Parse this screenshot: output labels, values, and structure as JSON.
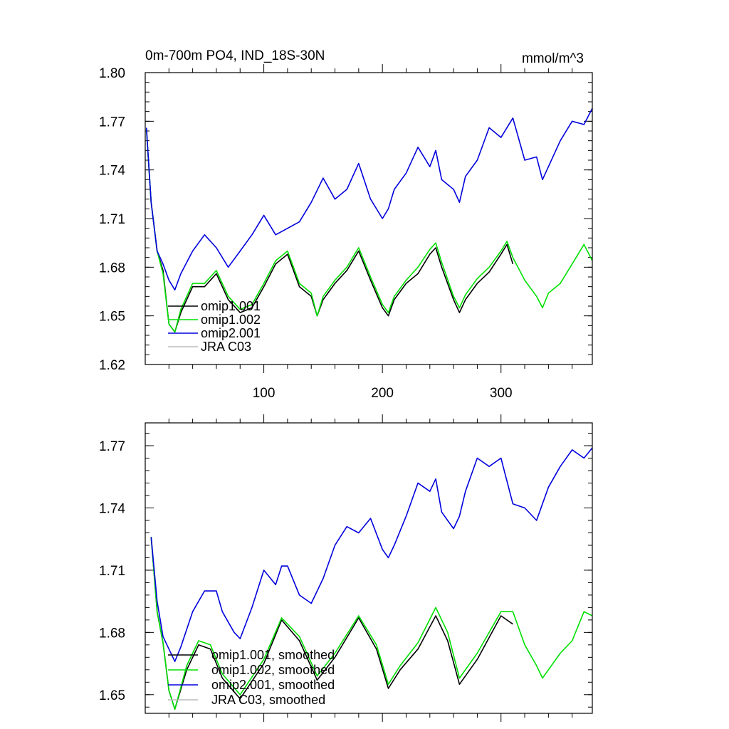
{
  "colors": {
    "omip1_001": "#000000",
    "omip1_002": "#00e000",
    "omip2_001": "#0000dd",
    "jra_c03": "#bbbbbb"
  },
  "chart_data": [
    {
      "type": "line",
      "title": "0m-700m PO4, IND_18S-30N",
      "units": "mmol/m^3",
      "xlabel": "",
      "ylabel": "",
      "xlim": [
        0,
        377
      ],
      "ylim": [
        1.62,
        1.8
      ],
      "xticks": [
        100,
        200,
        300
      ],
      "xtick_labels": [
        "100",
        "200",
        "300"
      ],
      "yticks": [
        1.62,
        1.65,
        1.68,
        1.71,
        1.74,
        1.77,
        1.8
      ],
      "ytick_labels": [
        "1.62",
        "1.65",
        "1.68",
        "1.71",
        "1.74",
        "1.77",
        "1.80"
      ],
      "legend_position": "bottom-left",
      "series": [
        {
          "name": "omip1.001",
          "color_key": "omip1_001",
          "x": [
            1,
            5,
            10,
            15,
            20,
            25,
            30,
            40,
            50,
            60,
            70,
            80,
            90,
            100,
            110,
            120,
            130,
            140,
            145,
            150,
            160,
            170,
            180,
            190,
            200,
            205,
            210,
            220,
            230,
            240,
            245,
            250,
            260,
            265,
            270,
            280,
            290,
            300,
            305,
            310
          ],
          "values": [
            1.765,
            1.72,
            1.69,
            1.678,
            1.645,
            1.64,
            1.652,
            1.668,
            1.668,
            1.676,
            1.66,
            1.652,
            1.655,
            1.668,
            1.682,
            1.688,
            1.668,
            1.662,
            1.65,
            1.66,
            1.67,
            1.678,
            1.69,
            1.672,
            1.655,
            1.65,
            1.66,
            1.67,
            1.676,
            1.688,
            1.692,
            1.68,
            1.66,
            1.652,
            1.66,
            1.67,
            1.677,
            1.688,
            1.694,
            1.682
          ]
        },
        {
          "name": "omip1.002",
          "color_key": "omip1_002",
          "x": [
            1,
            5,
            10,
            15,
            20,
            25,
            30,
            40,
            50,
            60,
            70,
            80,
            90,
            100,
            110,
            120,
            130,
            140,
            145,
            150,
            160,
            170,
            180,
            190,
            200,
            205,
            210,
            220,
            230,
            240,
            245,
            250,
            260,
            265,
            270,
            280,
            290,
            300,
            305,
            310,
            320,
            330,
            335,
            340,
            350,
            360,
            370,
            377
          ],
          "values": [
            1.765,
            1.72,
            1.69,
            1.676,
            1.645,
            1.64,
            1.654,
            1.67,
            1.67,
            1.678,
            1.662,
            1.654,
            1.657,
            1.67,
            1.684,
            1.69,
            1.67,
            1.664,
            1.65,
            1.662,
            1.672,
            1.68,
            1.692,
            1.674,
            1.657,
            1.652,
            1.662,
            1.672,
            1.68,
            1.691,
            1.695,
            1.683,
            1.662,
            1.655,
            1.663,
            1.673,
            1.68,
            1.69,
            1.696,
            1.686,
            1.672,
            1.662,
            1.655,
            1.664,
            1.67,
            1.682,
            1.694,
            1.684
          ]
        },
        {
          "name": "omip2.001",
          "color_key": "omip2_001",
          "x": [
            1,
            5,
            10,
            15,
            20,
            25,
            30,
            40,
            50,
            60,
            70,
            80,
            90,
            100,
            110,
            120,
            130,
            140,
            150,
            160,
            170,
            180,
            190,
            200,
            205,
            210,
            220,
            230,
            240,
            245,
            250,
            260,
            265,
            270,
            280,
            290,
            300,
            310,
            320,
            330,
            335,
            340,
            350,
            360,
            370,
            377
          ],
          "values": [
            1.766,
            1.72,
            1.69,
            1.682,
            1.672,
            1.666,
            1.676,
            1.69,
            1.7,
            1.692,
            1.68,
            1.69,
            1.7,
            1.712,
            1.7,
            1.704,
            1.708,
            1.72,
            1.735,
            1.722,
            1.728,
            1.744,
            1.722,
            1.71,
            1.716,
            1.728,
            1.738,
            1.754,
            1.742,
            1.752,
            1.734,
            1.728,
            1.72,
            1.736,
            1.746,
            1.766,
            1.76,
            1.772,
            1.746,
            1.748,
            1.734,
            1.742,
            1.758,
            1.77,
            1.768,
            1.778
          ]
        }
      ],
      "legend": [
        "omip1.001",
        "omip1.002",
        "omip2.001",
        "JRA C03"
      ]
    },
    {
      "type": "line",
      "title": "",
      "xlabel": "",
      "ylabel": "",
      "xlim": [
        0,
        377
      ],
      "ylim": [
        1.641,
        1.781
      ],
      "xticks": [
        100,
        200,
        300
      ],
      "yticks": [
        1.65,
        1.68,
        1.71,
        1.74,
        1.77
      ],
      "ytick_labels": [
        "1.65",
        "1.68",
        "1.71",
        "1.74",
        "1.77"
      ],
      "legend_position": "bottom-left",
      "series": [
        {
          "name": "omip1.001, smoothed",
          "color_key": "omip1_001",
          "x": [
            5,
            10,
            15,
            20,
            25,
            35,
            45,
            55,
            65,
            80,
            100,
            115,
            130,
            145,
            160,
            180,
            195,
            205,
            215,
            230,
            245,
            255,
            265,
            280,
            300,
            310
          ],
          "values": [
            1.726,
            1.69,
            1.675,
            1.652,
            1.643,
            1.662,
            1.674,
            1.672,
            1.658,
            1.648,
            1.665,
            1.686,
            1.676,
            1.657,
            1.668,
            1.687,
            1.672,
            1.653,
            1.662,
            1.672,
            1.688,
            1.676,
            1.655,
            1.667,
            1.688,
            1.684
          ]
        },
        {
          "name": "omip1.002, smoothed",
          "color_key": "omip1_002",
          "x": [
            5,
            10,
            15,
            20,
            25,
            35,
            45,
            55,
            65,
            80,
            100,
            115,
            130,
            145,
            160,
            180,
            195,
            205,
            215,
            230,
            245,
            255,
            265,
            280,
            300,
            310,
            320,
            330,
            335,
            340,
            350,
            360,
            370,
            377
          ],
          "values": [
            1.726,
            1.69,
            1.675,
            1.652,
            1.643,
            1.664,
            1.676,
            1.674,
            1.66,
            1.65,
            1.667,
            1.687,
            1.678,
            1.659,
            1.67,
            1.688,
            1.674,
            1.655,
            1.664,
            1.675,
            1.692,
            1.68,
            1.658,
            1.67,
            1.69,
            1.69,
            1.674,
            1.664,
            1.658,
            1.662,
            1.67,
            1.676,
            1.69,
            1.688
          ]
        },
        {
          "name": "omip2.001, smoothed",
          "color_key": "omip2_001",
          "x": [
            5,
            10,
            15,
            20,
            25,
            30,
            40,
            50,
            60,
            65,
            75,
            80,
            90,
            100,
            110,
            115,
            120,
            130,
            140,
            150,
            160,
            170,
            180,
            190,
            200,
            205,
            210,
            220,
            230,
            240,
            245,
            250,
            260,
            265,
            270,
            280,
            290,
            300,
            310,
            320,
            330,
            335,
            340,
            350,
            360,
            370,
            377
          ],
          "values": [
            1.726,
            1.695,
            1.678,
            1.672,
            1.666,
            1.673,
            1.69,
            1.7,
            1.7,
            1.69,
            1.68,
            1.677,
            1.692,
            1.71,
            1.703,
            1.712,
            1.712,
            1.698,
            1.694,
            1.706,
            1.722,
            1.731,
            1.728,
            1.735,
            1.72,
            1.716,
            1.722,
            1.736,
            1.752,
            1.748,
            1.754,
            1.738,
            1.73,
            1.736,
            1.748,
            1.764,
            1.76,
            1.764,
            1.742,
            1.74,
            1.734,
            1.742,
            1.75,
            1.76,
            1.768,
            1.764,
            1.769
          ]
        }
      ],
      "legend": [
        "omip1.001, smoothed",
        "omip1.002, smoothed",
        "omip2.001, smoothed",
        "JRA C03, smoothed"
      ]
    }
  ]
}
